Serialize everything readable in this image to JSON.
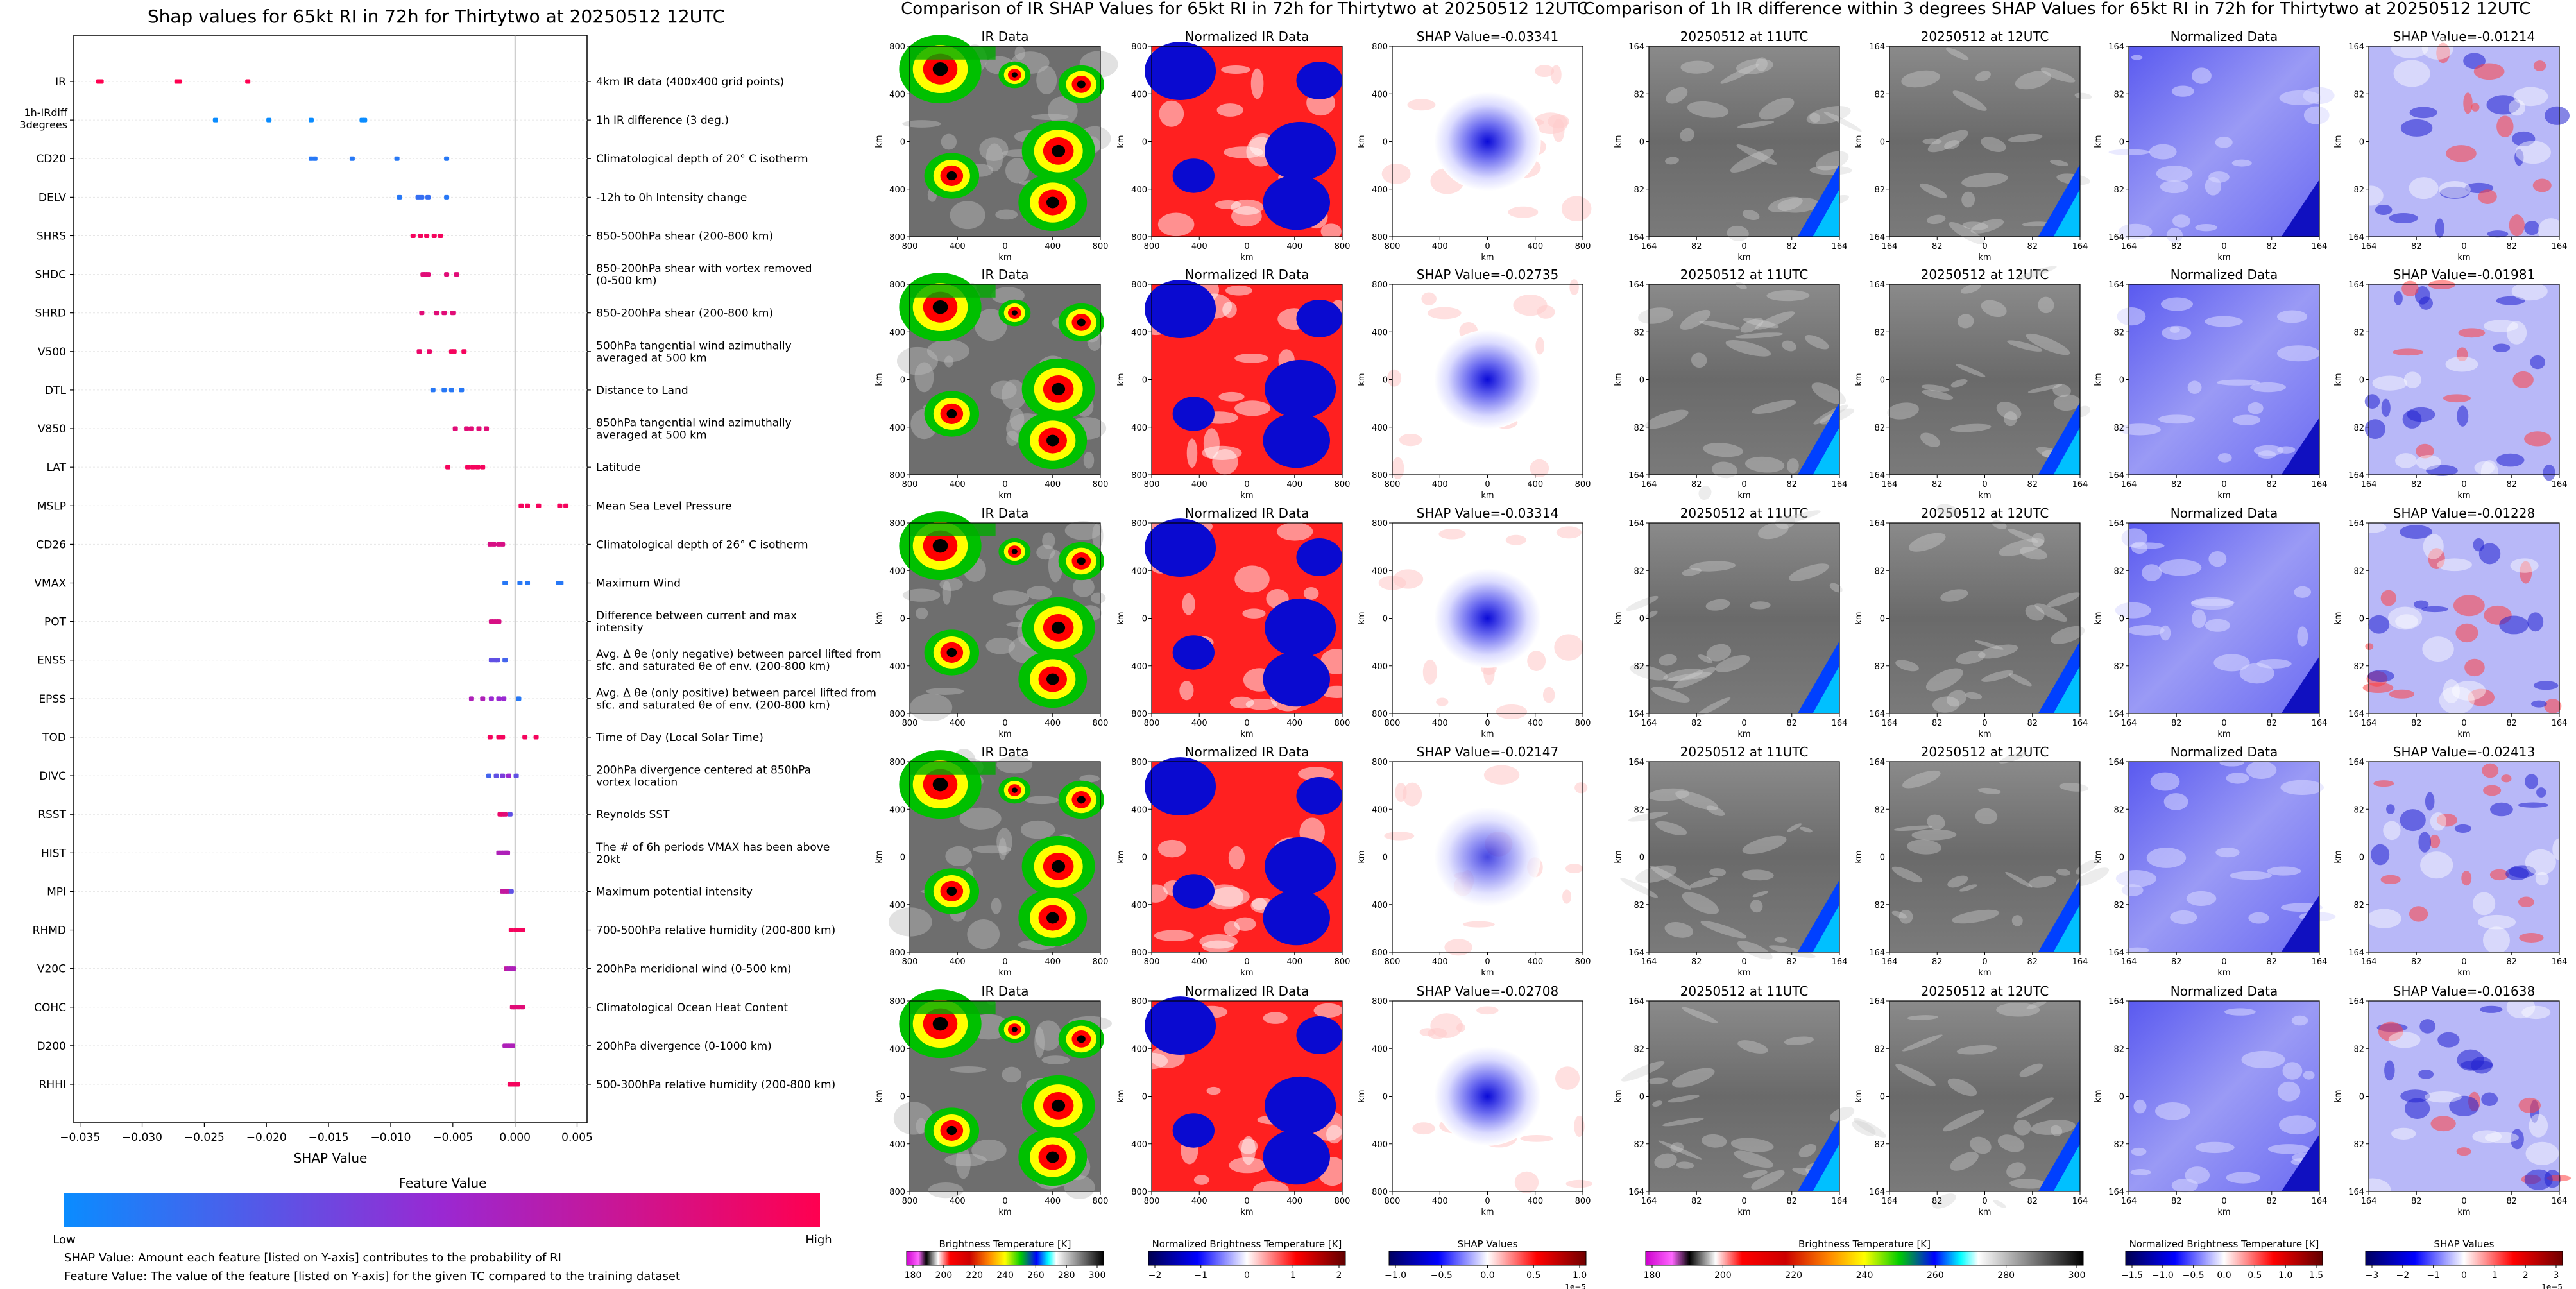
{
  "left_panel": {
    "title": "Shap values for 65kt RI in 72h for Thirtytwo at 20250512 12UTC",
    "xlabel": "SHAP Value",
    "xticks": [
      "−0.035",
      "−0.030",
      "−0.025",
      "−0.020",
      "−0.015",
      "−0.010",
      "−0.005",
      "0.000",
      "0.005"
    ],
    "colorbar_title": "Feature Value",
    "colorbar_low": "Low",
    "colorbar_high": "High",
    "note1": "SHAP Value: Amount each feature [listed on Y-axis] contributes to the probability of RI",
    "note2": "Feature Value: The value of the feature [listed on Y-axis] for the given TC compared to the training dataset"
  },
  "mid_panel": {
    "title": "Comparison of IR SHAP Values for 65kt RI in 72h for Thirtytwo at 20250512 12UTC",
    "col_titles": [
      "IR Data",
      "Normalized IR Data"
    ],
    "shap_titles": [
      "SHAP Value=-0.03341",
      "SHAP Value=-0.02735",
      "SHAP Value=-0.03314",
      "SHAP Value=-0.02147",
      "SHAP Value=-0.02708"
    ],
    "y_ticks": [
      "800",
      "400",
      "0",
      "400",
      "800"
    ],
    "x_ticks": [
      "800",
      "400",
      "0",
      "400",
      "800"
    ],
    "axis_label": "km",
    "colorbars": [
      {
        "label": "Brightness Temperature [K]",
        "ticks": [
          "180",
          "200",
          "220",
          "240",
          "260",
          "280",
          "300"
        ]
      },
      {
        "label": "Normalized Brightness Temperature [K]",
        "ticks": [
          "−2",
          "−1",
          "0",
          "1",
          "2"
        ]
      },
      {
        "label": "SHAP Values",
        "ticks": [
          "−1.0",
          "−0.5",
          "0.0",
          "0.5",
          "1.0"
        ],
        "exponent": "1e−5"
      }
    ]
  },
  "right_panel": {
    "title": "Comparison of 1h IR difference within 3 degrees SHAP Values for 65kt RI in 72h for Thirtytwo at 20250512 12UTC",
    "col_titles": [
      "20250512 at 11UTC",
      "20250512 at 12UTC",
      "Normalized Data"
    ],
    "shap_titles": [
      "SHAP Value=-0.01214",
      "SHAP Value=-0.01981",
      "SHAP Value=-0.01228",
      "SHAP Value=-0.02413",
      "SHAP Value=-0.01638"
    ],
    "y_ticks": [
      "164",
      "82",
      "0",
      "82",
      "164"
    ],
    "x_ticks": [
      "164",
      "82",
      "0",
      "82",
      "164"
    ],
    "axis_label": "km",
    "colorbars": [
      {
        "label": "Brightness Temperature [K]",
        "ticks": [
          "180",
          "200",
          "220",
          "240",
          "260",
          "280",
          "300"
        ]
      },
      {
        "label": "Normalized Brightness Temperature [K]",
        "ticks": [
          "−1.5",
          "−1.0",
          "−0.5",
          "0.0",
          "0.5",
          "1.0",
          "1.5"
        ]
      },
      {
        "label": "SHAP Values",
        "ticks": [
          "−3",
          "−2",
          "−1",
          "0",
          "1",
          "2",
          "3"
        ],
        "exponent": "1e−5"
      }
    ]
  },
  "colors": {
    "low": "#1e88e5",
    "mid": "#8e2ad6",
    "high": "#ff0052",
    "ir_gray": "#6f6f6f",
    "norm_red": "#ff1a1a",
    "norm_blue": "#1c1cd6"
  },
  "chart_data": {
    "type": "scatter",
    "title": "Shap values for 65kt RI in 72h for Thirtytwo at 20250512 12UTC",
    "xlabel": "SHAP Value",
    "xlim": [
      -0.0355,
      0.0058
    ],
    "features": [
      {
        "name": "IR",
        "desc": "4km IR data (400x400 grid points)",
        "points": [
          [
            -0.0335,
            1.0
          ],
          [
            -0.0333,
            1.0
          ],
          [
            -0.0272,
            1.0
          ],
          [
            -0.027,
            1.0
          ],
          [
            -0.0215,
            1.0
          ]
        ]
      },
      {
        "name": "1h-IRdiff 3degrees",
        "desc": "1h IR difference (3 deg.)",
        "points": [
          [
            -0.0241,
            0.0
          ],
          [
            -0.0198,
            0.0
          ],
          [
            -0.0164,
            0.0
          ],
          [
            -0.0123,
            0.0
          ],
          [
            -0.0121,
            0.0
          ]
        ]
      },
      {
        "name": "CD20",
        "desc": "Climatological depth of 20° C isotherm",
        "points": [
          [
            -0.0164,
            0.1
          ],
          [
            -0.0161,
            0.1
          ],
          [
            -0.0131,
            0.1
          ],
          [
            -0.0095,
            0.1
          ],
          [
            -0.0055,
            0.1
          ]
        ]
      },
      {
        "name": "DELV",
        "desc": "-12h to 0h Intensity change",
        "points": [
          [
            -0.0093,
            0.1
          ],
          [
            -0.0078,
            0.15
          ],
          [
            -0.0075,
            0.15
          ],
          [
            -0.007,
            0.15
          ],
          [
            -0.0055,
            0.1
          ]
        ]
      },
      {
        "name": "SHRS",
        "desc": "850-500hPa shear (200-800 km)",
        "points": [
          [
            -0.0082,
            0.95
          ],
          [
            -0.0076,
            0.95
          ],
          [
            -0.0071,
            0.95
          ],
          [
            -0.0065,
            0.95
          ],
          [
            -0.006,
            0.95
          ]
        ]
      },
      {
        "name": "SHDC",
        "desc": "850-200hPa shear with vortex removed (0-500 km)",
        "points": [
          [
            -0.0074,
            0.85
          ],
          [
            -0.0072,
            0.85
          ],
          [
            -0.007,
            0.85
          ],
          [
            -0.0055,
            0.85
          ],
          [
            -0.0047,
            0.85
          ]
        ]
      },
      {
        "name": "SHRD",
        "desc": "850-200hPa shear (200-800 km)",
        "points": [
          [
            -0.0075,
            0.85
          ],
          [
            -0.0063,
            0.85
          ],
          [
            -0.0057,
            0.85
          ],
          [
            -0.005,
            0.85
          ]
        ]
      },
      {
        "name": "V500",
        "desc": "500hPa tangential wind azimuthally averaged at 500 km",
        "points": [
          [
            -0.0077,
            0.9
          ],
          [
            -0.0069,
            0.9
          ],
          [
            -0.0051,
            0.95
          ],
          [
            -0.0049,
            0.95
          ],
          [
            -0.0041,
            0.95
          ]
        ]
      },
      {
        "name": "DTL",
        "desc": "Distance to Land",
        "points": [
          [
            -0.0066,
            0.1
          ],
          [
            -0.0057,
            0.1
          ],
          [
            -0.0051,
            0.1
          ],
          [
            -0.0043,
            0.1
          ]
        ]
      },
      {
        "name": "V850",
        "desc": "850hPa tangential wind azimuthally averaged at 500 km",
        "points": [
          [
            -0.0048,
            0.85
          ],
          [
            -0.0039,
            0.85
          ],
          [
            -0.0035,
            0.85
          ],
          [
            -0.0029,
            0.85
          ],
          [
            -0.0023,
            0.85
          ]
        ]
      },
      {
        "name": "LAT",
        "desc": "Latitude",
        "points": [
          [
            -0.0054,
            0.95
          ],
          [
            -0.0038,
            0.95
          ],
          [
            -0.0034,
            0.95
          ],
          [
            -0.003,
            0.95
          ],
          [
            -0.0026,
            0.95
          ]
        ]
      },
      {
        "name": "MSLP",
        "desc": "Mean Sea Level Pressure",
        "points": [
          [
            0.0005,
            0.95
          ],
          [
            0.001,
            0.95
          ],
          [
            0.0019,
            0.95
          ],
          [
            0.0036,
            0.95
          ],
          [
            0.0041,
            0.95
          ]
        ]
      },
      {
        "name": "CD26",
        "desc": "Climatological depth of 26° C isotherm",
        "points": [
          [
            -0.002,
            0.8
          ],
          [
            -0.0017,
            0.8
          ],
          [
            -0.0013,
            0.8
          ],
          [
            -0.001,
            0.8
          ]
        ]
      },
      {
        "name": "VMAX",
        "desc": "Maximum Wind",
        "points": [
          [
            -0.0008,
            0.1
          ],
          [
            0.0004,
            0.1
          ],
          [
            0.001,
            0.1
          ],
          [
            0.0035,
            0.1
          ],
          [
            0.0037,
            0.1
          ]
        ]
      },
      {
        "name": "POT",
        "desc": "Difference between current and max intensity",
        "points": [
          [
            -0.0019,
            0.8
          ],
          [
            -0.0017,
            0.8
          ],
          [
            -0.0015,
            0.8
          ],
          [
            -0.0013,
            0.8
          ]
        ]
      },
      {
        "name": "ENSS",
        "desc": "Avg. Δ θe (only negative) between parcel lifted from sfc. and saturated θe of env. (200-800 km)",
        "points": [
          [
            -0.0019,
            0.3
          ],
          [
            -0.0016,
            0.3
          ],
          [
            -0.0014,
            0.3
          ],
          [
            -0.0008,
            0.2
          ]
        ]
      },
      {
        "name": "EPSS",
        "desc": "Avg. Δ θe (only positive) between parcel lifted from sfc. and saturated θe of env. (200-800 km)",
        "points": [
          [
            -0.0035,
            0.6
          ],
          [
            -0.0026,
            0.6
          ],
          [
            -0.0019,
            0.5
          ],
          [
            -0.0013,
            0.5
          ],
          [
            -0.0009,
            0.5
          ],
          [
            0.0003,
            0.1
          ]
        ]
      },
      {
        "name": "TOD",
        "desc": "Time of Day (Local Solar Time)",
        "points": [
          [
            -0.002,
            0.95
          ],
          [
            -0.0013,
            0.95
          ],
          [
            -0.001,
            0.95
          ],
          [
            0.0008,
            0.95
          ],
          [
            0.0017,
            0.95
          ]
        ]
      },
      {
        "name": "DIVC",
        "desc": "200hPa divergence centered at 850hPa vortex location",
        "points": [
          [
            -0.0021,
            0.2
          ],
          [
            -0.0015,
            0.3
          ],
          [
            -0.001,
            0.4
          ],
          [
            -0.0005,
            0.5
          ],
          [
            0.0001,
            0.3
          ]
        ]
      },
      {
        "name": "RSST",
        "desc": "Reynolds SST",
        "points": [
          [
            -0.0012,
            0.9
          ],
          [
            -0.001,
            0.9
          ],
          [
            -0.0008,
            0.85
          ],
          [
            -0.0004,
            0.3
          ]
        ]
      },
      {
        "name": "HIST",
        "desc": "The # of 6h periods VMAX has been above 20kt",
        "points": [
          [
            -0.0013,
            0.6
          ],
          [
            -0.0011,
            0.6
          ],
          [
            -0.0009,
            0.6
          ],
          [
            -0.0007,
            0.6
          ],
          [
            -0.0006,
            0.6
          ]
        ]
      },
      {
        "name": "MPI",
        "desc": "Maximum potential intensity",
        "points": [
          [
            -0.001,
            0.7
          ],
          [
            -0.0008,
            0.7
          ],
          [
            -0.0006,
            0.7
          ],
          [
            -0.0003,
            0.3
          ]
        ]
      },
      {
        "name": "RHMD",
        "desc": "700-500hPa relative humidity (200-800 km)",
        "points": [
          [
            -0.0003,
            0.95
          ],
          [
            0.0001,
            0.95
          ],
          [
            0.0004,
            0.95
          ],
          [
            0.0006,
            0.95
          ]
        ]
      },
      {
        "name": "V20C",
        "desc": "200hPa meridional wind (0-500 km)",
        "points": [
          [
            -0.0007,
            0.7
          ],
          [
            -0.0005,
            0.6
          ],
          [
            -0.0003,
            0.6
          ],
          [
            -0.0001,
            0.6
          ]
        ]
      },
      {
        "name": "COHC",
        "desc": "Climatological Ocean Heat Content",
        "points": [
          [
            -0.0002,
            0.85
          ],
          [
            0.0,
            0.85
          ],
          [
            0.0003,
            0.85
          ],
          [
            0.0006,
            0.85
          ]
        ]
      },
      {
        "name": "D200",
        "desc": "200hPa divergence (0-1000 km)",
        "points": [
          [
            -0.0008,
            0.6
          ],
          [
            -0.0006,
            0.6
          ],
          [
            -0.0004,
            0.6
          ],
          [
            -0.0002,
            0.6
          ]
        ]
      },
      {
        "name": "RHHI",
        "desc": "500-300hPa relative humidity (200-800 km)",
        "points": [
          [
            -0.0004,
            0.95
          ],
          [
            -0.0002,
            0.95
          ],
          [
            0.0,
            0.95
          ],
          [
            0.0002,
            0.95
          ]
        ]
      }
    ]
  }
}
